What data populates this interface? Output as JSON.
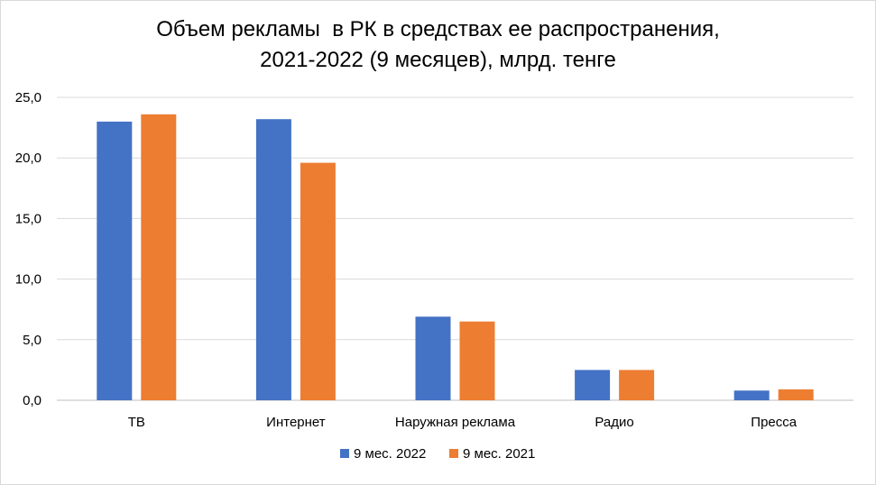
{
  "chart_data": {
    "type": "bar",
    "title_lines": [
      "Объем рекламы  в РК в средствах ее распространения,",
      "2021-2022 (9 месяцев), млрд. тенге"
    ],
    "categories": [
      "ТВ",
      "Интернет",
      "Наружная реклама",
      "Радио",
      "Пресса"
    ],
    "series": [
      {
        "name": "9 мес. 2022",
        "color": "#4472C4",
        "values": [
          23.0,
          23.2,
          6.9,
          2.5,
          0.8
        ]
      },
      {
        "name": "9 мес. 2021",
        "color": "#ED7D31",
        "values": [
          23.6,
          19.6,
          6.5,
          2.5,
          0.9
        ]
      }
    ],
    "ylim": [
      0,
      25
    ],
    "y_ticks": [
      "0,0",
      "5,0",
      "10,0",
      "15,0",
      "20,0",
      "25,0"
    ],
    "y_tick_values": [
      0,
      5,
      10,
      15,
      20,
      25
    ],
    "grid": true,
    "legend_position": "bottom"
  }
}
